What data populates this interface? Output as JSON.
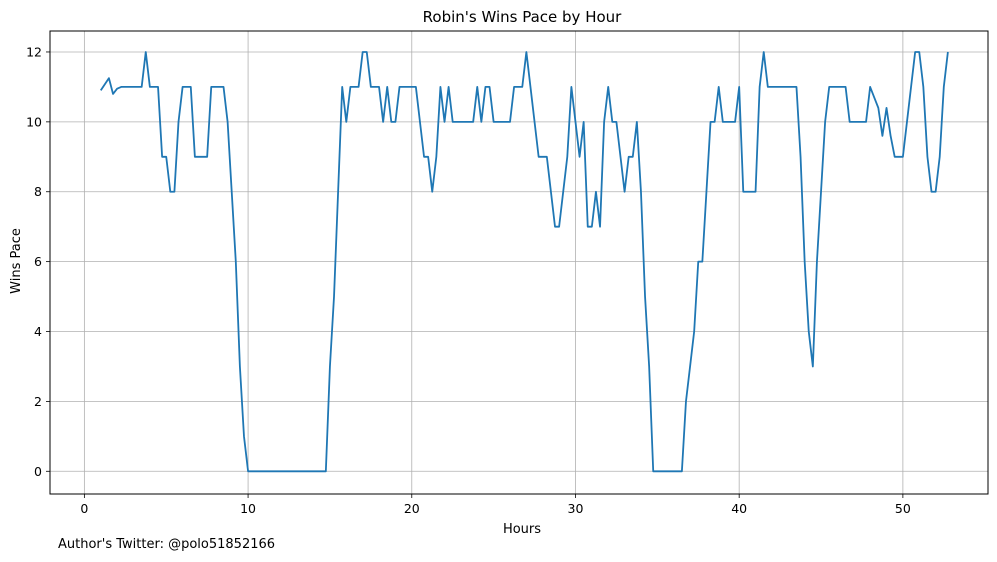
{
  "chart_data": {
    "type": "line",
    "title": "Robin's Wins Pace by Hour",
    "xlabel": "Hours",
    "ylabel": "Wins Pace",
    "xlim": [
      -2.1,
      55.2
    ],
    "ylim": [
      -0.65,
      12.6
    ],
    "xticks": [
      0,
      10,
      20,
      30,
      40,
      50
    ],
    "yticks": [
      0,
      2,
      4,
      6,
      8,
      10,
      12
    ],
    "grid": true,
    "series": [
      {
        "color": "#1f77b4",
        "x": [
          1.0,
          1.5,
          1.75,
          2.0,
          2.25,
          2.5,
          3.0,
          3.5,
          3.75,
          4.0,
          4.5,
          4.75,
          5.0,
          5.25,
          5.5,
          5.75,
          6.0,
          6.25,
          6.5,
          6.75,
          7.0,
          7.25,
          7.5,
          7.75,
          8.0,
          8.25,
          8.5,
          8.75,
          9.0,
          9.25,
          9.5,
          9.75,
          10.0,
          10.25,
          10.5,
          11.0,
          12.0,
          13.0,
          14.0,
          14.75,
          15.0,
          15.25,
          15.5,
          15.75,
          16.0,
          16.25,
          16.5,
          16.75,
          17.0,
          17.25,
          17.5,
          17.75,
          18.0,
          18.25,
          18.5,
          18.75,
          19.0,
          19.25,
          19.5,
          19.75,
          20.0,
          20.25,
          20.5,
          20.75,
          21.0,
          21.25,
          21.5,
          21.75,
          22.0,
          22.25,
          22.5,
          22.75,
          23.0,
          23.25,
          23.5,
          23.75,
          24.0,
          24.25,
          24.5,
          24.75,
          25.0,
          25.25,
          25.5,
          25.75,
          26.0,
          26.25,
          26.5,
          26.75,
          27.0,
          27.25,
          27.5,
          27.75,
          28.0,
          28.25,
          28.5,
          28.75,
          29.0,
          29.25,
          29.5,
          29.75,
          30.0,
          30.25,
          30.5,
          30.75,
          31.0,
          31.25,
          31.5,
          31.75,
          32.0,
          32.25,
          32.5,
          32.75,
          33.0,
          33.25,
          33.5,
          33.75,
          34.0,
          34.25,
          34.5,
          34.75,
          35.0,
          35.5,
          36.0,
          36.5,
          36.75,
          37.0,
          37.25,
          37.5,
          37.75,
          38.0,
          38.25,
          38.5,
          38.75,
          39.0,
          39.25,
          39.5,
          39.75,
          40.0,
          40.25,
          40.5,
          40.75,
          41.0,
          41.25,
          41.5,
          41.75,
          42.0,
          42.5,
          43.0,
          43.5,
          43.75,
          44.0,
          44.25,
          44.5,
          44.75,
          45.0,
          45.25,
          45.5,
          45.75,
          46.0,
          46.25,
          46.5,
          46.75,
          47.0,
          47.25,
          47.5,
          47.75,
          48.0,
          48.25,
          48.5,
          48.75,
          49.0,
          49.25,
          49.5,
          49.75,
          50.0,
          50.25,
          50.5,
          50.75,
          51.0,
          51.25,
          51.5,
          51.75,
          52.0,
          52.25,
          52.5,
          52.75
        ],
        "y": [
          10.9,
          11.25,
          10.8,
          10.95,
          11.0,
          11.0,
          11.0,
          11.0,
          12.0,
          11.0,
          11.0,
          9.0,
          9.0,
          8.0,
          8.0,
          10.0,
          11.0,
          11.0,
          11.0,
          9.0,
          9.0,
          9.0,
          9.0,
          11.0,
          11.0,
          11.0,
          11.0,
          10.0,
          8.0,
          6.0,
          3.0,
          1.0,
          0.0,
          0.0,
          0.0,
          0.0,
          0.0,
          0.0,
          0.0,
          0.0,
          3.0,
          5.0,
          8.0,
          11.0,
          10.0,
          11.0,
          11.0,
          11.0,
          12.0,
          12.0,
          11.0,
          11.0,
          11.0,
          10.0,
          11.0,
          10.0,
          10.0,
          11.0,
          11.0,
          11.0,
          11.0,
          11.0,
          10.0,
          9.0,
          9.0,
          8.0,
          9.0,
          11.0,
          10.0,
          11.0,
          10.0,
          10.0,
          10.0,
          10.0,
          10.0,
          10.0,
          11.0,
          10.0,
          11.0,
          11.0,
          10.0,
          10.0,
          10.0,
          10.0,
          10.0,
          11.0,
          11.0,
          11.0,
          12.0,
          11.0,
          10.0,
          9.0,
          9.0,
          9.0,
          8.0,
          7.0,
          7.0,
          8.0,
          9.0,
          11.0,
          10.0,
          9.0,
          10.0,
          7.0,
          7.0,
          8.0,
          7.0,
          10.0,
          11.0,
          10.0,
          10.0,
          9.0,
          8.0,
          9.0,
          9.0,
          10.0,
          8.0,
          5.0,
          3.0,
          0.0,
          0.0,
          0.0,
          0.0,
          0.0,
          2.0,
          3.0,
          4.0,
          6.0,
          6.0,
          8.0,
          10.0,
          10.0,
          11.0,
          10.0,
          10.0,
          10.0,
          10.0,
          11.0,
          8.0,
          8.0,
          8.0,
          8.0,
          11.0,
          12.0,
          11.0,
          11.0,
          11.0,
          11.0,
          11.0,
          9.0,
          6.0,
          4.0,
          3.0,
          6.0,
          8.0,
          10.0,
          11.0,
          11.0,
          11.0,
          11.0,
          11.0,
          10.0,
          10.0,
          10.0,
          10.0,
          10.0,
          11.0,
          10.7,
          10.4,
          9.6,
          10.4,
          9.6,
          9.0,
          9.0,
          9.0,
          10.0,
          11.0,
          12.0,
          12.0,
          11.0,
          9.0,
          8.0,
          8.0,
          9.0,
          11.0,
          12.0
        ]
      }
    ]
  },
  "footer": {
    "credit": "Author's Twitter: @polo51852166"
  }
}
